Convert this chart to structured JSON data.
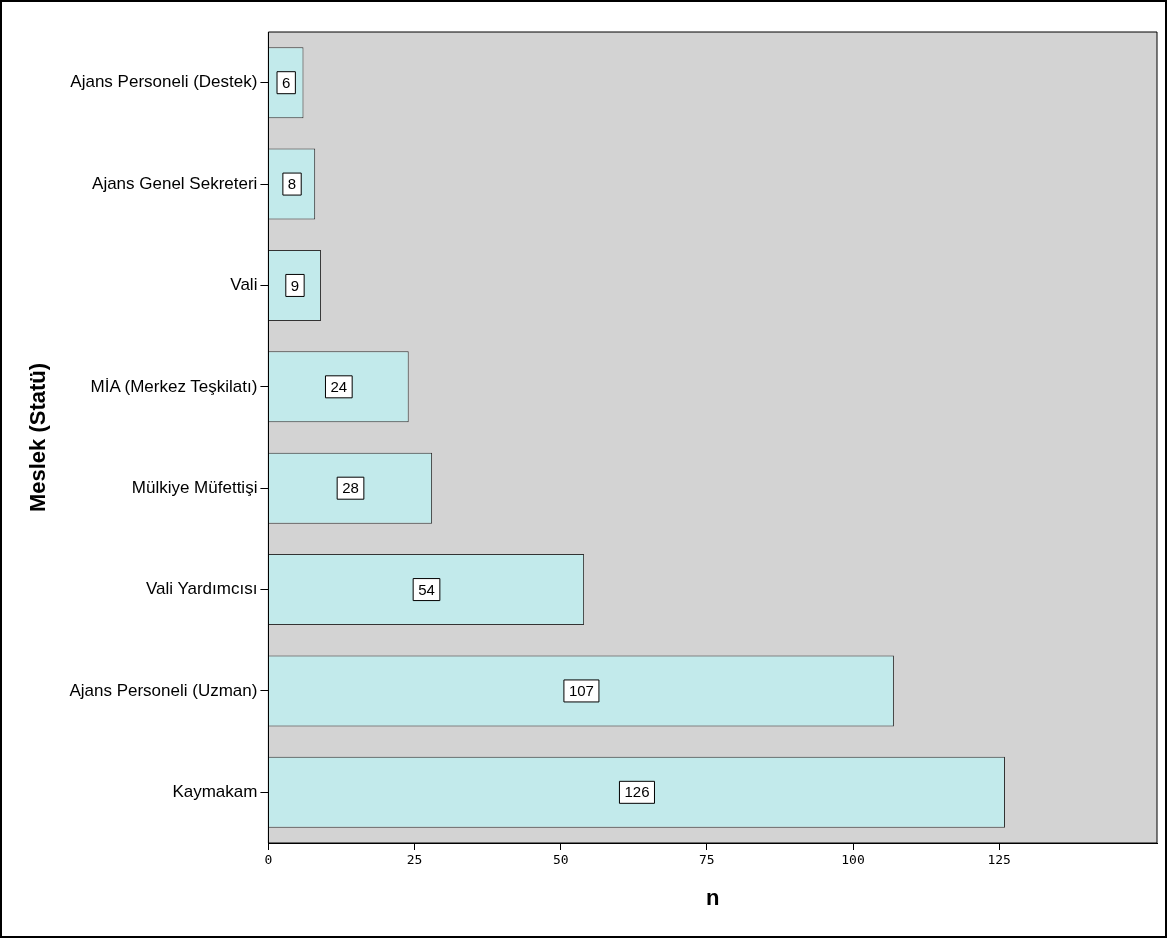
{
  "chart_data": {
    "type": "bar",
    "orientation": "horizontal",
    "xlabel": "n",
    "ylabel": "Meslek (Statü)",
    "categories": [
      "Ajans Personeli (Destek)",
      "Ajans Genel Sekreteri",
      "Vali",
      "MİA (Merkez Teşkilatı)",
      "Mülkiye Müfettişi",
      "Vali Yardımcısı",
      "Ajans Personeli (Uzman)",
      "Kaymakam"
    ],
    "values": [
      6,
      8,
      9,
      24,
      28,
      54,
      107,
      126
    ],
    "color": "#c2eaeb",
    "xlim": [
      0,
      152
    ],
    "xticks": [
      0,
      25,
      50,
      75,
      100,
      125
    ],
    "grid": false,
    "legend": false,
    "data_labels": true
  }
}
